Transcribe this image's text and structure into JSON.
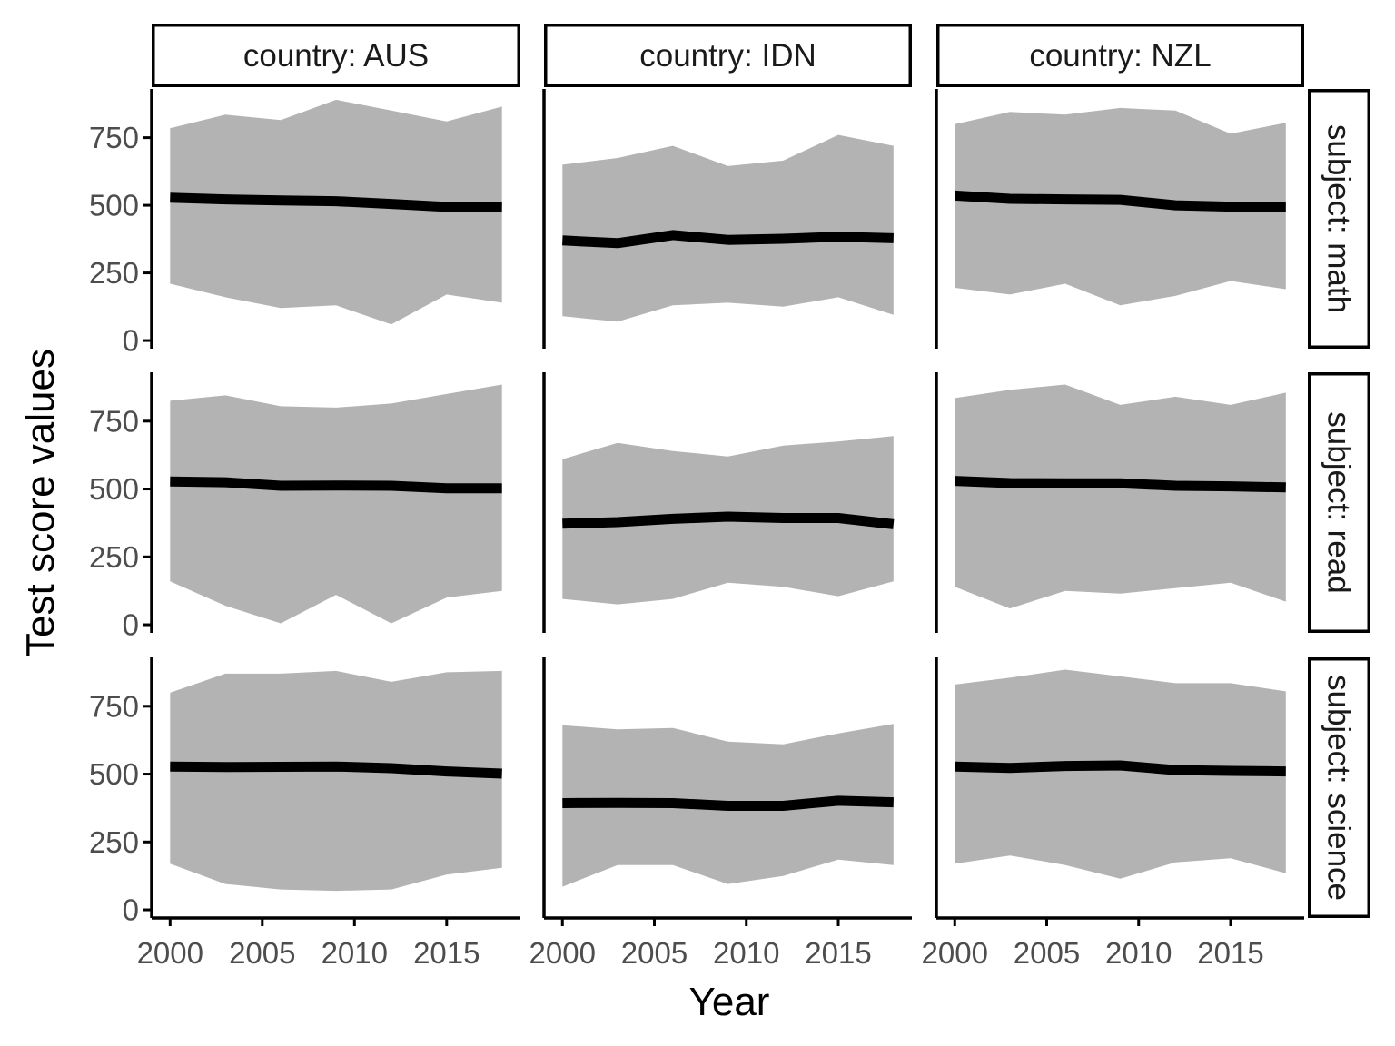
{
  "chart_data": {
    "type": "line",
    "facet_type": "grid",
    "xlabel": "Year",
    "ylabel": "Test score values",
    "x": [
      2000,
      2003,
      2006,
      2009,
      2012,
      2015,
      2018
    ],
    "xlim": [
      1999,
      2019
    ],
    "ylim": [
      -30,
      930
    ],
    "xticks": [
      2000,
      2005,
      2010,
      2015
    ],
    "yticks": [
      0,
      250,
      500,
      750
    ],
    "columns": [
      "country: AUS",
      "country: IDN",
      "country: NZL"
    ],
    "rows": [
      "subject: math",
      "subject: read",
      "subject: science"
    ],
    "grid": false,
    "legend": "none",
    "colors": {
      "band": "#b3b3b3",
      "line": "#000000",
      "axis": "#000000",
      "tick_text": "#4d4d4d"
    },
    "panels": [
      {
        "country": "AUS",
        "subject": "math",
        "mean": [
          528,
          522,
          518,
          515,
          505,
          494,
          492
        ],
        "lower": [
          210,
          160,
          120,
          130,
          60,
          170,
          140
        ],
        "upper": [
          785,
          835,
          815,
          890,
          850,
          810,
          865
        ]
      },
      {
        "country": "IDN",
        "subject": "math",
        "mean": [
          370,
          360,
          390,
          372,
          376,
          384,
          378
        ],
        "lower": [
          90,
          70,
          130,
          140,
          125,
          160,
          95
        ],
        "upper": [
          650,
          675,
          720,
          645,
          665,
          760,
          720
        ]
      },
      {
        "country": "NZL",
        "subject": "math",
        "mean": [
          536,
          524,
          522,
          520,
          500,
          495,
          495
        ],
        "lower": [
          195,
          170,
          210,
          130,
          165,
          220,
          190
        ],
        "upper": [
          800,
          845,
          835,
          860,
          850,
          765,
          805
        ]
      },
      {
        "country": "AUS",
        "subject": "read",
        "mean": [
          528,
          525,
          512,
          513,
          512,
          503,
          503
        ],
        "lower": [
          160,
          70,
          5,
          110,
          5,
          100,
          125
        ],
        "upper": [
          825,
          845,
          805,
          800,
          815,
          850,
          885
        ]
      },
      {
        "country": "IDN",
        "subject": "read",
        "mean": [
          372,
          378,
          390,
          398,
          393,
          393,
          370
        ],
        "lower": [
          95,
          75,
          95,
          155,
          140,
          105,
          160
        ],
        "upper": [
          610,
          670,
          640,
          620,
          660,
          675,
          695
        ]
      },
      {
        "country": "NZL",
        "subject": "read",
        "mean": [
          530,
          522,
          521,
          521,
          512,
          510,
          506
        ],
        "lower": [
          140,
          60,
          125,
          115,
          135,
          155,
          85
        ],
        "upper": [
          835,
          865,
          885,
          810,
          840,
          810,
          855
        ]
      },
      {
        "country": "AUS",
        "subject": "science",
        "mean": [
          528,
          526,
          527,
          528,
          522,
          510,
          502
        ],
        "lower": [
          170,
          95,
          75,
          70,
          75,
          130,
          155
        ],
        "upper": [
          800,
          870,
          870,
          880,
          840,
          875,
          880
        ]
      },
      {
        "country": "IDN",
        "subject": "science",
        "mean": [
          393,
          394,
          393,
          383,
          383,
          402,
          396
        ],
        "lower": [
          85,
          165,
          165,
          95,
          125,
          185,
          165
        ],
        "upper": [
          680,
          665,
          670,
          620,
          610,
          650,
          685
        ]
      },
      {
        "country": "NZL",
        "subject": "science",
        "mean": [
          528,
          523,
          530,
          532,
          515,
          512,
          510
        ],
        "lower": [
          170,
          200,
          165,
          115,
          175,
          190,
          135
        ],
        "upper": [
          830,
          855,
          885,
          860,
          835,
          835,
          805
        ]
      }
    ]
  }
}
